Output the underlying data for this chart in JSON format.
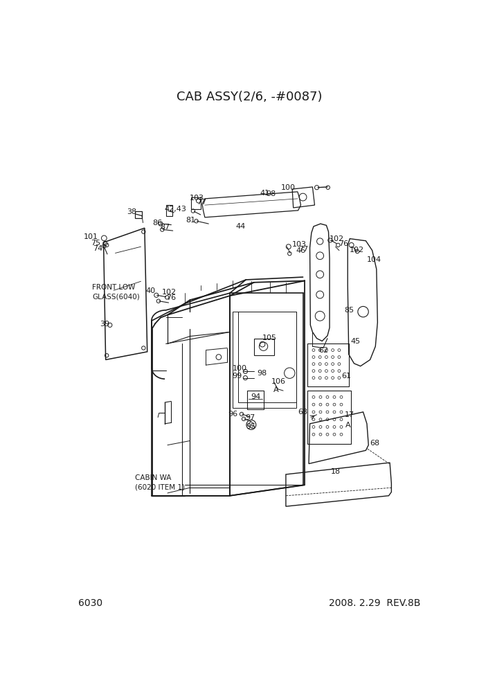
{
  "title": "CAB ASSY(2/6, -#0087)",
  "page_num": "6030",
  "date_rev": "2008. 2.29  REV.8B",
  "bg_color": "#ffffff",
  "line_color": "#1a1a1a",
  "title_fontsize": 13,
  "label_fontsize": 8,
  "footer_fontsize": 10
}
